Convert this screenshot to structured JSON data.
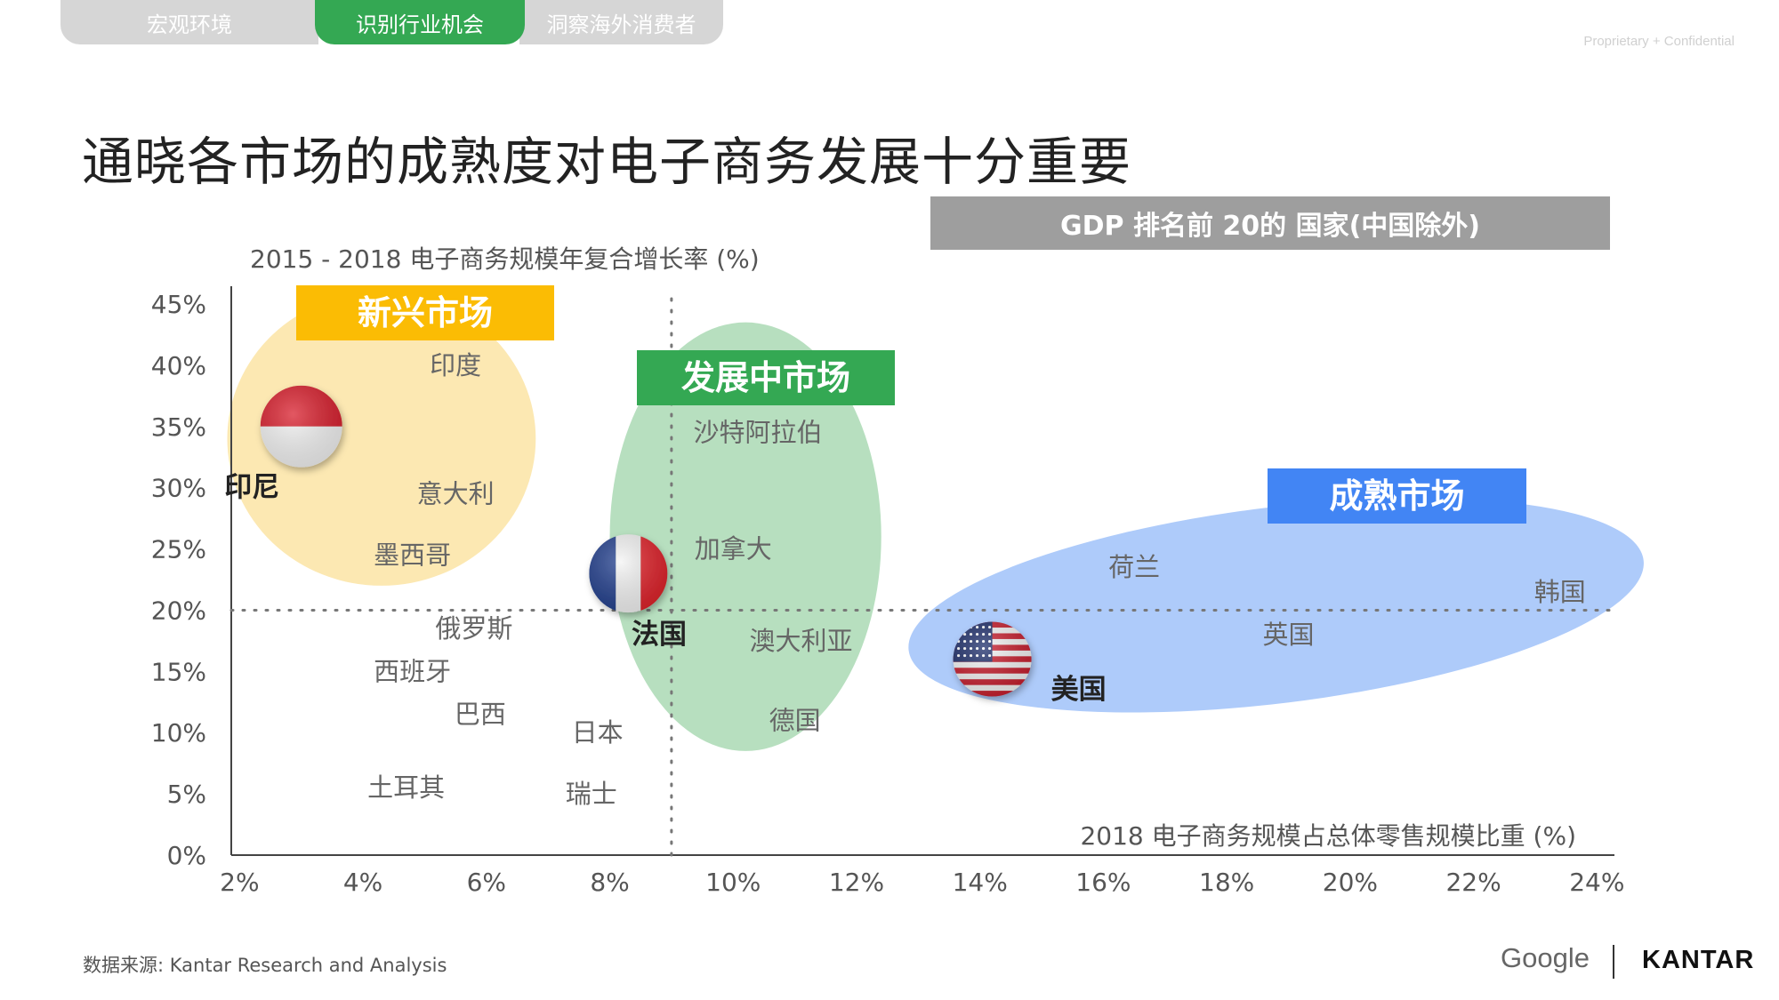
{
  "tabs": [
    {
      "label": "宏观环境",
      "active": false
    },
    {
      "label": "识别行业机会",
      "active": true
    },
    {
      "label": "洞察海外消费者",
      "active": false
    }
  ],
  "confidential": "Proprietary + Confidential",
  "title": "通晓各市场的成熟度对电子商务发展十分重要",
  "gdp_banner": "GDP 排名前 20的 国家(中国除外)",
  "source": "数据来源: Kantar Research and Analysis",
  "logos": {
    "google": "Google",
    "kantar": "KANTAR"
  },
  "colors": {
    "emerging": "#fbbc04",
    "emerging_fill": "#fce8b2",
    "developing": "#34a853",
    "developing_fill": "#b7dfbf",
    "mature": "#4285f4",
    "mature_fill": "#aecbfa",
    "axis": "#555555",
    "text": "#555555"
  },
  "chart_data": {
    "type": "scatter",
    "ylabel": "2015 - 2018 电子商务规模年复合增长率 (%)",
    "xlabel": "2018 电子商务规模占总体零售规模比重 (%)",
    "x_ticks": [
      "2%",
      "4%",
      "6%",
      "8%",
      "10%",
      "12%",
      "14%",
      "16%",
      "18%",
      "20%",
      "22%",
      "24%"
    ],
    "x_tick_values": [
      2,
      4,
      6,
      8,
      10,
      12,
      14,
      16,
      18,
      20,
      22,
      24
    ],
    "y_ticks": [
      "0%",
      "5%",
      "10%",
      "15%",
      "20%",
      "25%",
      "30%",
      "35%",
      "40%",
      "45%"
    ],
    "y_tick_values": [
      0,
      5,
      10,
      15,
      20,
      25,
      30,
      35,
      40,
      45
    ],
    "xlim": [
      1,
      24.5
    ],
    "ylim": [
      0,
      45
    ],
    "reference_lines": {
      "x": 9,
      "y": 20
    },
    "segments": [
      {
        "label": "新兴市场",
        "color_key": "emerging",
        "cx": 4.3,
        "cy": 34,
        "rx": 2.5,
        "ry": 12
      },
      {
        "label": "发展中市场",
        "color_key": "developing",
        "cx": 10.2,
        "cy": 26,
        "rx": 2.2,
        "ry": 17.5
      },
      {
        "label": "成熟市场",
        "color_key": "mature",
        "cx": 18.8,
        "cy": 20.4,
        "rx": 6,
        "ry": 8
      }
    ],
    "points": [
      {
        "name": "印度",
        "x": 5.5,
        "y": 40,
        "bold": false
      },
      {
        "name": "印尼",
        "x": 2.2,
        "y": 30,
        "bold": true,
        "flag": "indonesia",
        "flag_x": 3,
        "flag_y": 35
      },
      {
        "name": "意大利",
        "x": 5.5,
        "y": 29.5,
        "bold": false
      },
      {
        "name": "墨西哥",
        "x": 4.8,
        "y": 24.5,
        "bold": false
      },
      {
        "name": "沙特阿拉伯",
        "x": 10.4,
        "y": 34.5,
        "bold": false
      },
      {
        "name": "加拿大",
        "x": 10,
        "y": 25,
        "bold": false
      },
      {
        "name": "法国",
        "x": 8.8,
        "y": 18,
        "bold": true,
        "flag": "france",
        "flag_x": 8.3,
        "flag_y": 23
      },
      {
        "name": "澳大利亚",
        "x": 11.1,
        "y": 17.5,
        "bold": false
      },
      {
        "name": "德国",
        "x": 11,
        "y": 11,
        "bold": false
      },
      {
        "name": "俄罗斯",
        "x": 5.8,
        "y": 18.5,
        "bold": false
      },
      {
        "name": "西班牙",
        "x": 4.8,
        "y": 15,
        "bold": false
      },
      {
        "name": "巴西",
        "x": 5.9,
        "y": 11.5,
        "bold": false
      },
      {
        "name": "日本",
        "x": 7.8,
        "y": 10,
        "bold": false
      },
      {
        "name": "土耳其",
        "x": 4.7,
        "y": 5.5,
        "bold": false
      },
      {
        "name": "瑞士",
        "x": 7.7,
        "y": 5,
        "bold": false
      },
      {
        "name": "荷兰",
        "x": 16.5,
        "y": 23.5,
        "bold": false
      },
      {
        "name": "韩国",
        "x": 23.4,
        "y": 21.5,
        "bold": false
      },
      {
        "name": "英国",
        "x": 19,
        "y": 18,
        "bold": false
      },
      {
        "name": "美国",
        "x": 15.6,
        "y": 13.5,
        "bold": true,
        "flag": "usa",
        "flag_x": 14.2,
        "flag_y": 16
      }
    ]
  }
}
